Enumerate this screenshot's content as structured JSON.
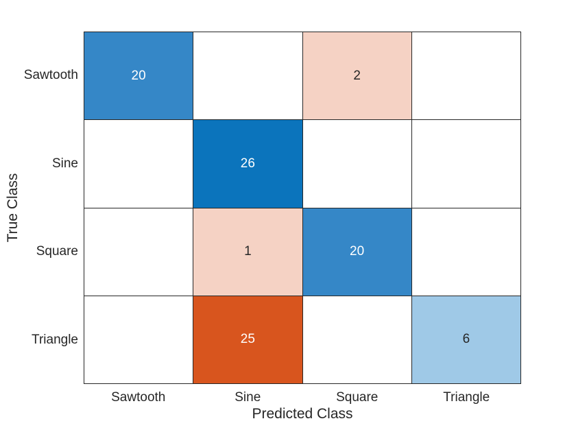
{
  "chart_data": {
    "type": "heatmap",
    "subtype": "confusion_matrix",
    "title": "",
    "xlabel": "Predicted Class",
    "ylabel": "True Class",
    "categories_x": [
      "Sawtooth",
      "Sine",
      "Square",
      "Triangle"
    ],
    "categories_y": [
      "Sawtooth",
      "Sine",
      "Square",
      "Triangle"
    ],
    "matrix": [
      [
        20,
        null,
        2,
        null
      ],
      [
        null,
        26,
        null,
        null
      ],
      [
        null,
        1,
        20,
        null
      ],
      [
        null,
        25,
        null,
        6
      ]
    ],
    "cell_styles": [
      {
        "row": 0,
        "col": 0,
        "value": "20",
        "bg": "#3587c7",
        "fg": "#ffffff"
      },
      {
        "row": 0,
        "col": 2,
        "value": "2",
        "bg": "#f5d2c4",
        "fg": "#262626"
      },
      {
        "row": 1,
        "col": 1,
        "value": "26",
        "bg": "#0b74bc",
        "fg": "#ffffff"
      },
      {
        "row": 2,
        "col": 1,
        "value": "1",
        "bg": "#f5d2c4",
        "fg": "#262626"
      },
      {
        "row": 2,
        "col": 2,
        "value": "20",
        "bg": "#3587c7",
        "fg": "#ffffff"
      },
      {
        "row": 3,
        "col": 1,
        "value": "25",
        "bg": "#d8551e",
        "fg": "#ffffff"
      },
      {
        "row": 3,
        "col": 3,
        "value": "6",
        "bg": "#9fc9e7",
        "fg": "#262626"
      }
    ],
    "colors": {
      "diagonal_base": "#0b74bc",
      "off_diagonal_base": "#d8551e",
      "empty_cell": "#ffffff",
      "grid_line": "#262626",
      "label_text": "#262626"
    },
    "layout_hints": {
      "grid": "on",
      "legend": "none",
      "axes": "category-category"
    }
  }
}
